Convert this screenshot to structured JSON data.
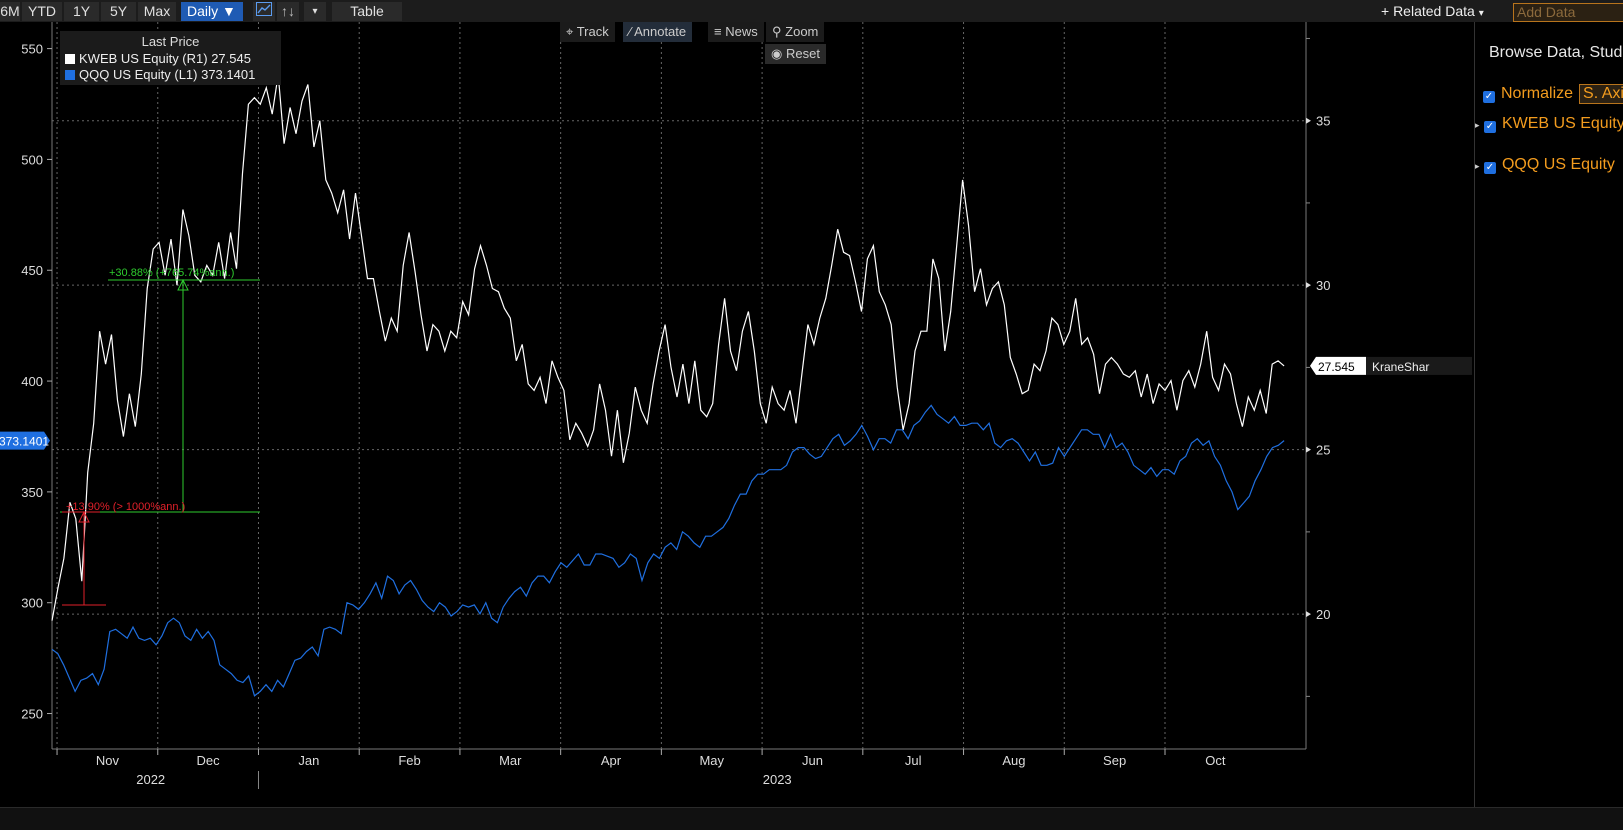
{
  "toolbar": {
    "buttons": [
      "6M",
      "YTD",
      "1Y",
      "5Y",
      "Max"
    ],
    "interval": "Daily",
    "table": "Table",
    "related": "+ Related Data",
    "add_data_placeholder": "Add Data"
  },
  "chart_tools": {
    "track": "Track",
    "annotate": "Annotate",
    "news": "News",
    "zoom": "Zoom",
    "reset": "Reset"
  },
  "legend": {
    "header": "Last Price",
    "rows": [
      {
        "text": "KWEB US Equity  (R1)  27.545",
        "color": "#ffffff"
      },
      {
        "text": "QQQ US Equity  (L1)  373.1401",
        "color": "#1f6fe0"
      }
    ]
  },
  "side_panel": {
    "title": "Browse Data, Studies",
    "normalize": "Normalize",
    "s_axis": "S. Axis",
    "series": [
      "KWEB US Equity",
      "QQQ US Equity"
    ]
  },
  "annotations": {
    "green": "+30.88% (+765.74%ann.)",
    "red": "+13.90% (> 1000%ann.)"
  },
  "price_tags": {
    "left": "373.1401",
    "right_value": "27.545",
    "right_name": "KraneShar"
  },
  "chart_data": {
    "type": "line",
    "x_labels": [
      "Nov",
      "Dec",
      "Jan",
      "Feb",
      "Mar",
      "Apr",
      "May",
      "Jun",
      "Jul",
      "Aug",
      "Sep",
      "Oct"
    ],
    "year_labels": [
      "2022",
      "2023"
    ],
    "left_axis": {
      "ticks": [
        250,
        300,
        350,
        400,
        450,
        500,
        550
      ],
      "ylim": [
        234,
        562
      ]
    },
    "right_axis": {
      "ticks": [
        20,
        25,
        30,
        35
      ],
      "ylim": [
        15.9,
        38
      ]
    },
    "series": [
      {
        "name": "KWEB US Equity",
        "axis": "right",
        "color": "#ffffff",
        "values": [
          19.8,
          20.8,
          21.7,
          23.4,
          22.9,
          21.0,
          24.3,
          25.8,
          28.6,
          27.6,
          28.5,
          26.5,
          25.4,
          26.7,
          25.7,
          27.3,
          29.9,
          31.1,
          31.3,
          30.3,
          31.4,
          30.0,
          32.3,
          31.5,
          30.3,
          30.1,
          30.6,
          30.3,
          31.3,
          30.2,
          31.6,
          30.5,
          33.4,
          35.5,
          35.7,
          35.5,
          36.0,
          35.2,
          36.4,
          34.3,
          35.4,
          34.6,
          35.6,
          36.1,
          34.2,
          35.0,
          33.2,
          32.8,
          32.2,
          32.9,
          31.4,
          32.8,
          31.5,
          30.2,
          30.2,
          29.2,
          28.3,
          29.0,
          28.6,
          30.6,
          31.6,
          30.4,
          29.1,
          28.0,
          28.8,
          28.6,
          28.0,
          28.6,
          28.4,
          29.5,
          29.1,
          30.5,
          31.2,
          30.6,
          29.9,
          29.8,
          29.3,
          29.0,
          27.7,
          28.2,
          27.0,
          26.8,
          27.2,
          26.4,
          27.7,
          27.2,
          26.8,
          25.3,
          25.8,
          25.5,
          25.1,
          25.6,
          27.0,
          26.2,
          24.8,
          26.2,
          24.6,
          25.5,
          26.9,
          26.2,
          25.8,
          27.0,
          28.0,
          28.8,
          27.5,
          26.6,
          27.6,
          26.4,
          27.7,
          26.2,
          26.0,
          26.4,
          28.2,
          29.6,
          28.0,
          27.4,
          28.6,
          29.2,
          28.0,
          26.4,
          25.8,
          26.9,
          26.4,
          26.2,
          26.8,
          25.8,
          27.3,
          28.8,
          28.2,
          29.0,
          29.6,
          30.6,
          31.7,
          31.0,
          30.9,
          30.1,
          29.2,
          30.8,
          31.2,
          29.8,
          29.4,
          28.8,
          26.9,
          25.6,
          26.4,
          28.0,
          28.6,
          28.6,
          30.8,
          30.2,
          28.0,
          29.2,
          31.2,
          33.2,
          31.8,
          29.8,
          30.5,
          29.4,
          29.9,
          30.1,
          29.4,
          27.8,
          27.3,
          26.7,
          26.8,
          27.6,
          27.4,
          28.0,
          29.0,
          28.8,
          28.2,
          28.6,
          29.6,
          28.2,
          28.4,
          27.9,
          26.7,
          27.6,
          27.8,
          27.6,
          27.3,
          27.2,
          27.4,
          26.6,
          27.3,
          26.4,
          27.0,
          26.8,
          27.1,
          26.2,
          27.1,
          27.4,
          26.9,
          27.6,
          28.6,
          27.2,
          26.8,
          27.6,
          27.3,
          26.4,
          25.7,
          26.6,
          26.2,
          26.8,
          26.1,
          27.6,
          27.7,
          27.545
        ]
      },
      {
        "name": "QQQ US Equity",
        "axis": "left",
        "color": "#1f6fe0",
        "values": [
          279,
          277,
          272,
          266,
          260,
          265,
          266,
          268,
          263,
          270,
          287,
          288,
          286,
          284,
          289,
          284,
          283,
          284,
          281,
          285,
          291,
          293,
          291,
          285,
          283,
          288,
          284,
          287,
          283,
          272,
          270,
          268,
          265,
          264,
          267,
          258,
          260,
          263,
          260,
          265,
          262,
          268,
          274,
          275,
          278,
          280,
          276,
          288,
          289,
          288,
          286,
          300,
          299,
          297,
          300,
          304,
          309,
          302,
          312,
          310,
          304,
          308,
          310,
          306,
          301,
          298,
          296,
          300,
          298,
          294,
          296,
          299,
          298,
          299,
          295,
          300,
          293,
          291,
          298,
          302,
          305,
          307,
          303,
          309,
          312,
          312,
          309,
          314,
          318,
          316,
          319,
          322,
          317,
          317,
          322,
          322,
          321,
          320,
          316,
          318,
          322,
          320,
          310,
          318,
          322,
          320,
          325,
          327,
          324,
          332,
          330,
          327,
          325,
          330,
          330,
          332,
          334,
          338,
          344,
          349,
          349,
          355,
          358,
          358,
          360,
          360,
          360,
          362,
          368,
          370,
          370,
          367,
          365,
          366,
          370,
          374,
          376,
          371,
          373,
          376,
          380,
          375,
          369,
          374,
          374,
          372,
          378,
          378,
          374,
          380,
          382,
          386,
          389,
          385,
          383,
          381,
          384,
          380,
          380,
          381,
          381,
          378,
          381,
          372,
          370,
          373,
          374,
          372,
          368,
          364,
          368,
          362,
          362,
          363,
          370,
          366,
          370,
          374,
          378,
          378,
          376,
          376,
          370,
          376,
          370,
          372,
          368,
          362,
          360,
          358,
          361,
          357,
          360,
          360,
          358,
          364,
          366,
          372,
          374,
          371,
          373,
          366,
          362,
          355,
          350,
          342,
          345,
          348,
          355,
          360,
          366,
          370,
          371,
          373.1401
        ]
      }
    ]
  }
}
